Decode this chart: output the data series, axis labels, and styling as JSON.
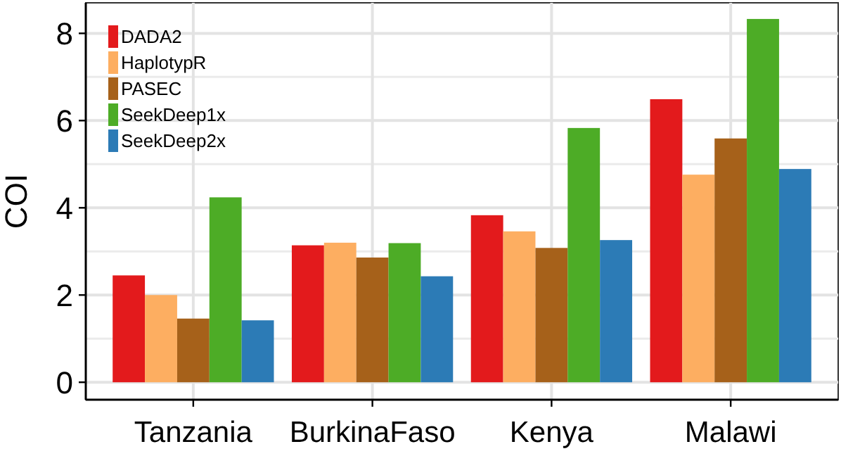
{
  "chart_data": {
    "type": "bar",
    "ylabel": "COI",
    "categories": [
      "Tanzania",
      "BurkinaFaso",
      "Kenya",
      "Malawi"
    ],
    "series": [
      {
        "name": "DADA2",
        "color": "#e31a1c",
        "values": [
          2.45,
          3.14,
          3.83,
          6.49
        ]
      },
      {
        "name": "HaplotypR",
        "color": "#fdae61",
        "values": [
          2.0,
          3.2,
          3.46,
          4.76
        ]
      },
      {
        "name": "PASEC",
        "color": "#a6611a",
        "values": [
          1.46,
          2.86,
          3.08,
          5.59
        ]
      },
      {
        "name": "SeekDeep1x",
        "color": "#4dac26",
        "values": [
          4.24,
          3.19,
          5.83,
          8.33
        ]
      },
      {
        "name": "SeekDeep2x",
        "color": "#2c7bb6",
        "values": [
          1.42,
          2.43,
          3.26,
          4.89
        ]
      }
    ],
    "ylim": [
      -0.4,
      8.7
    ],
    "yticks": [
      0,
      2,
      4,
      6,
      8
    ],
    "grid": true,
    "legend": "top left"
  }
}
